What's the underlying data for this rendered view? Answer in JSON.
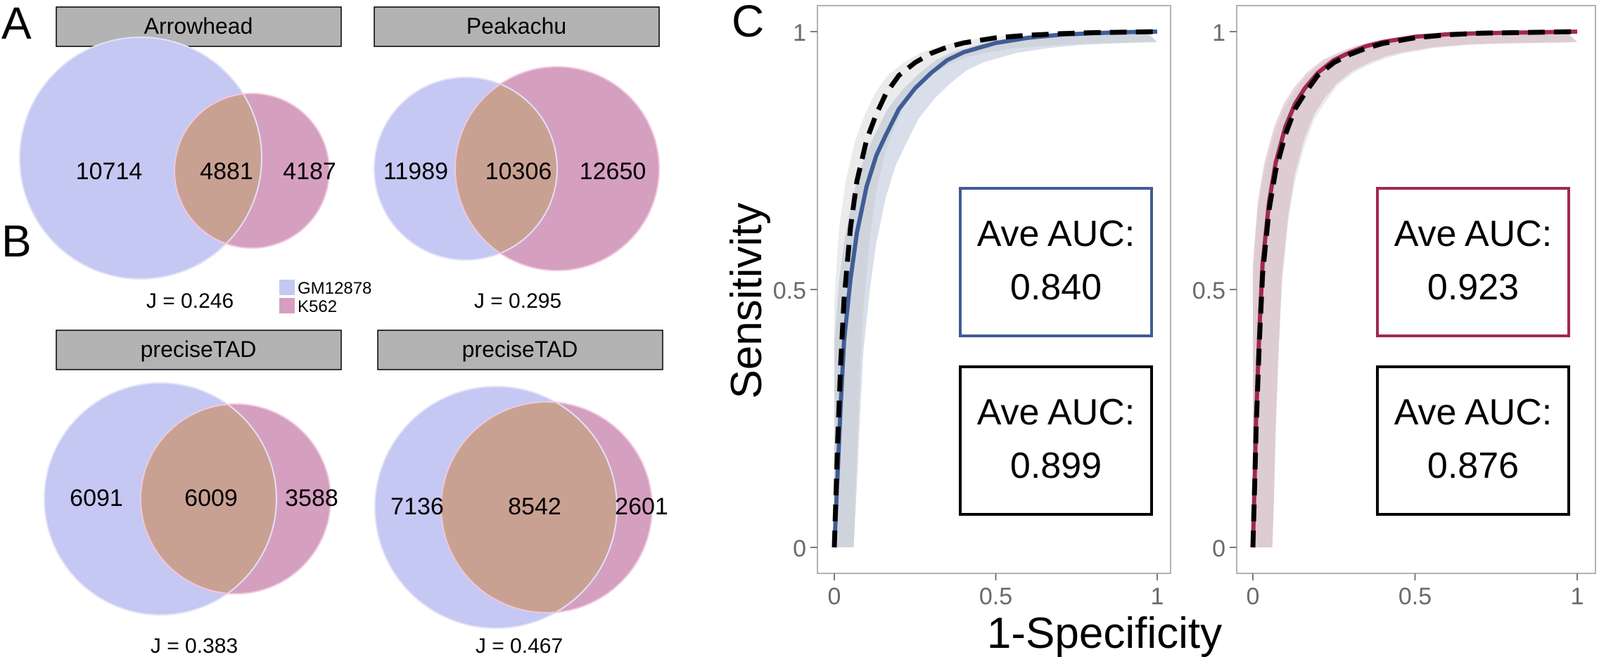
{
  "panel_labels": {
    "a": "A",
    "b": "B",
    "c": "C"
  },
  "legend": {
    "items": [
      {
        "label": "GM12878",
        "color": "#c5c8f2"
      },
      {
        "label": "K562",
        "color": "#d59fc0"
      }
    ]
  },
  "colors": {
    "set_a": "#c5c8f2",
    "set_b": "#d59fc0",
    "overlap": "#c9a193",
    "strip_fill": "#b3b3b3",
    "blue_line": "#3f5d96",
    "red_line": "#a0284e",
    "dashed_line": "#000000"
  },
  "chart_data": [
    {
      "type": "venn",
      "panel": "A",
      "strip": "Arrowhead",
      "sets": [
        "GM12878",
        "K562"
      ],
      "only_a": "10714",
      "overlap": "4881",
      "only_b": "4187",
      "jaccard": "J = 0.246"
    },
    {
      "type": "venn",
      "panel": "A",
      "strip": "Peakachu",
      "sets": [
        "GM12878",
        "K562"
      ],
      "only_a": "11989",
      "overlap": "10306",
      "only_b": "12650",
      "jaccard": "J = 0.295"
    },
    {
      "type": "venn",
      "panel": "B",
      "strip": "preciseTAD",
      "sets": [
        "GM12878",
        "K562"
      ],
      "only_a": "6091",
      "overlap": "6009",
      "only_b": "3588",
      "jaccard": "J = 0.383"
    },
    {
      "type": "venn",
      "panel": "B",
      "strip": "preciseTAD",
      "sets": [
        "GM12878",
        "K562"
      ],
      "only_a": "7136",
      "overlap": "8542",
      "only_b": "2601",
      "jaccard": "J = 0.467"
    },
    {
      "type": "line",
      "panel": "C",
      "xlabel": "1-Specificity",
      "ylabel": "Sensitivity",
      "xlim": [
        0,
        1
      ],
      "ylim": [
        0,
        1
      ],
      "xticks": [
        "0",
        "0.5",
        "1"
      ],
      "yticks": [
        "0",
        "0.5",
        "1"
      ],
      "grid": false,
      "series": [
        {
          "style": "solid",
          "color": "#3f5d96",
          "band": true,
          "x": [
            0,
            0.01,
            0.02,
            0.03,
            0.05,
            0.07,
            0.1,
            0.13,
            0.16,
            0.2,
            0.25,
            0.3,
            0.35,
            0.4,
            0.5,
            0.6,
            0.7,
            0.8,
            0.9,
            1.0
          ],
          "y": [
            0,
            0.14,
            0.28,
            0.4,
            0.52,
            0.61,
            0.7,
            0.76,
            0.8,
            0.85,
            0.89,
            0.92,
            0.945,
            0.96,
            0.978,
            0.988,
            0.994,
            0.997,
            0.999,
            1.0
          ]
        },
        {
          "style": "dashed",
          "color": "#000000",
          "band": true,
          "x": [
            0,
            0.01,
            0.02,
            0.03,
            0.05,
            0.07,
            0.1,
            0.13,
            0.16,
            0.2,
            0.25,
            0.3,
            0.35,
            0.4,
            0.5,
            0.6,
            0.7,
            0.8,
            0.9,
            1.0
          ],
          "y": [
            0,
            0.2,
            0.36,
            0.48,
            0.62,
            0.71,
            0.79,
            0.84,
            0.88,
            0.915,
            0.94,
            0.958,
            0.97,
            0.978,
            0.988,
            0.993,
            0.996,
            0.998,
            0.999,
            1.0
          ]
        }
      ],
      "annotations": [
        {
          "label": "Ave AUC:",
          "value": "0.840",
          "border": "#3f5d96"
        },
        {
          "label": "Ave AUC:",
          "value": "0.899",
          "border": "#000000"
        }
      ]
    },
    {
      "type": "line",
      "panel": "C",
      "xlabel": "1-Specificity",
      "ylabel": "Sensitivity",
      "xlim": [
        0,
        1
      ],
      "ylim": [
        0,
        1
      ],
      "xticks": [
        "0",
        "0.5",
        "1"
      ],
      "yticks": [
        "0",
        "0.5",
        "1"
      ],
      "grid": false,
      "series": [
        {
          "style": "solid",
          "color": "#a0284e",
          "band": true,
          "x": [
            0,
            0.005,
            0.01,
            0.02,
            0.03,
            0.05,
            0.07,
            0.1,
            0.13,
            0.16,
            0.2,
            0.25,
            0.3,
            0.35,
            0.4,
            0.5,
            0.6,
            0.7,
            0.8,
            0.9,
            1.0
          ],
          "y": [
            0,
            0.12,
            0.25,
            0.42,
            0.55,
            0.67,
            0.745,
            0.815,
            0.86,
            0.89,
            0.92,
            0.945,
            0.96,
            0.972,
            0.98,
            0.99,
            0.995,
            0.997,
            0.998,
            0.999,
            1.0
          ]
        },
        {
          "style": "dashed",
          "color": "#000000",
          "band": true,
          "x": [
            0,
            0.005,
            0.01,
            0.02,
            0.03,
            0.05,
            0.07,
            0.1,
            0.13,
            0.16,
            0.2,
            0.25,
            0.3,
            0.35,
            0.4,
            0.5,
            0.6,
            0.7,
            0.8,
            0.9,
            1.0
          ],
          "y": [
            0,
            0.11,
            0.23,
            0.4,
            0.53,
            0.655,
            0.73,
            0.8,
            0.85,
            0.88,
            0.915,
            0.94,
            0.956,
            0.968,
            0.977,
            0.988,
            0.994,
            0.997,
            0.998,
            0.999,
            1.0
          ]
        }
      ],
      "annotations": [
        {
          "label": "Ave AUC:",
          "value": "0.923",
          "border": "#a0284e"
        },
        {
          "label": "Ave AUC:",
          "value": "0.876",
          "border": "#000000"
        }
      ]
    }
  ]
}
